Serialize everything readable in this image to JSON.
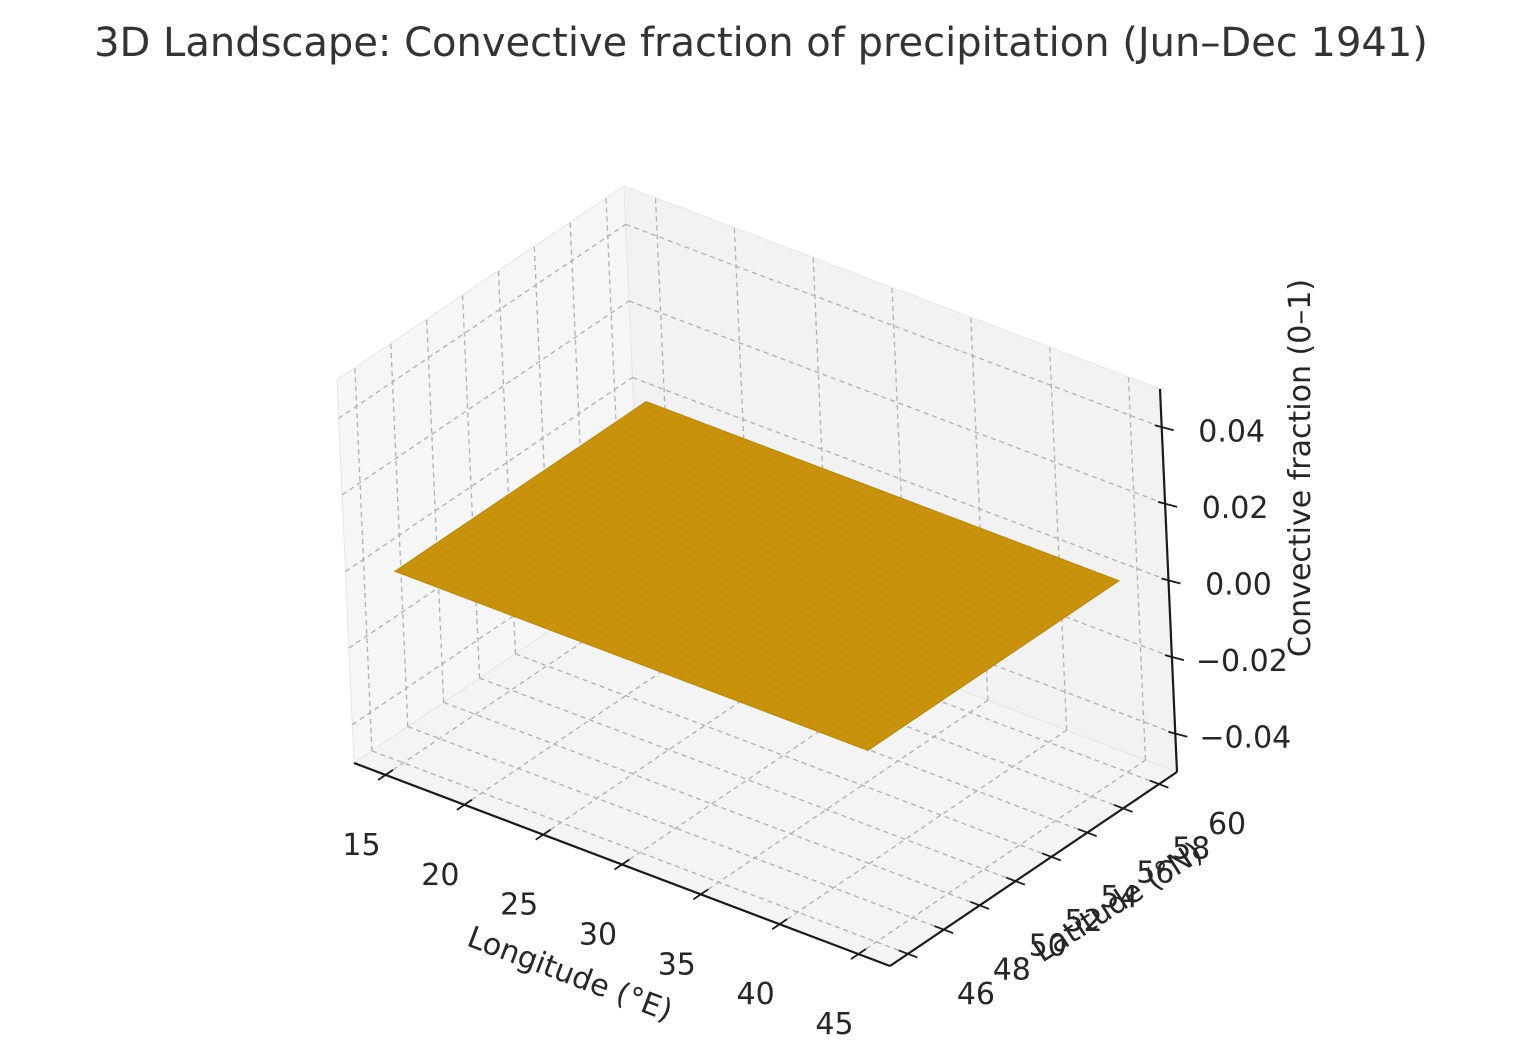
{
  "chart_data": {
    "type": "surface3d",
    "title": "3D Landscape: Convective fraction of precipitation (Jun–Dec 1941)",
    "xlabel": "Longitude (°E)",
    "ylabel": "Latitude (°N)",
    "zlabel": "Convective fraction (0–1)",
    "xlim": [
      13,
      47
    ],
    "ylim": [
      45,
      61
    ],
    "zlim": [
      -0.05,
      0.05
    ],
    "xticks": [
      15,
      20,
      25,
      30,
      35,
      40,
      45
    ],
    "xtick_labels": [
      "15",
      "20",
      "25",
      "30",
      "35",
      "40",
      "45"
    ],
    "yticks": [
      46,
      48,
      50,
      52,
      54,
      56,
      58,
      60
    ],
    "ytick_labels": [
      "46",
      "48",
      "50",
      "52",
      "54",
      "56",
      "58",
      "60"
    ],
    "zticks": [
      -0.04,
      -0.02,
      0.0,
      0.02,
      0.04
    ],
    "ztick_labels": [
      "−0.04",
      "−0.02",
      "0.00",
      "0.02",
      "0.04"
    ],
    "surface": {
      "x_range": [
        15,
        45
      ],
      "y_range": [
        46,
        60
      ],
      "z_value": 0.0,
      "color": "#c8920c"
    },
    "grid": true,
    "colors": {
      "surface": "#c8920c",
      "pane_back": "#f2f2f2",
      "pane_side": "#f6f6f6",
      "pane_floor": "#f4f4f4",
      "grid": "#b0b0b0",
      "axis": "#1a1a1a"
    }
  }
}
